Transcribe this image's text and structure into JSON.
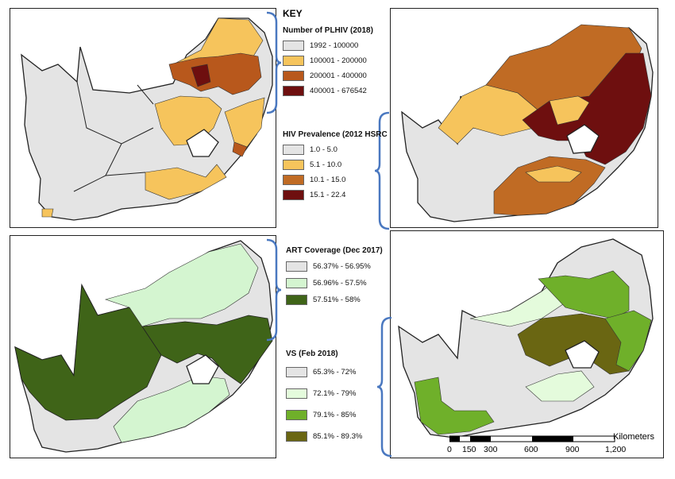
{
  "key_title": "KEY",
  "panels": [
    {
      "id": "plhiv",
      "legend_title": "Number of PLHIV (2018)",
      "classes": [
        {
          "label": "1992 - 100000",
          "color": "#e4e4e4"
        },
        {
          "label": "100001 - 200000",
          "color": "#f6c45c"
        },
        {
          "label": "200001 - 400000",
          "color": "#b8581c"
        },
        {
          "label": "400001 - 676542",
          "color": "#6e0f0f"
        }
      ]
    },
    {
      "id": "prevalence",
      "legend_title": "HIV Prevalence (2012 HSRC",
      "classes": [
        {
          "label": "1.0 - 5.0",
          "color": "#e4e4e4"
        },
        {
          "label": "5.1 - 10.0",
          "color": "#f6c45c"
        },
        {
          "label": "10.1 - 15.0",
          "color": "#c06b24"
        },
        {
          "label": "15.1 - 22.4",
          "color": "#6e0f0f"
        }
      ]
    },
    {
      "id": "art",
      "legend_title": "ART Coverage (Dec 2017)",
      "classes": [
        {
          "label": "56.37% - 56.95%",
          "color": "#e4e4e4"
        },
        {
          "label": "56.96% - 57.5%",
          "color": "#d4f5d0"
        },
        {
          "label": "57.51% - 58%",
          "color": "#3f6418"
        }
      ]
    },
    {
      "id": "vs",
      "legend_title": "VS (Feb 2018)",
      "classes": [
        {
          "label": "65.3% - 72%",
          "color": "#e4e4e4"
        },
        {
          "label": "72.1% - 79%",
          "color": "#e4fbdc"
        },
        {
          "label": "79.1% - 85%",
          "color": "#6fb02a"
        },
        {
          "label": "85.1% - 89.3%",
          "color": "#6a6612"
        }
      ]
    }
  ],
  "scale": {
    "unit": "Kilometers",
    "ticks": [
      "0",
      "150",
      "300",
      "600",
      "900",
      "1,200"
    ]
  }
}
